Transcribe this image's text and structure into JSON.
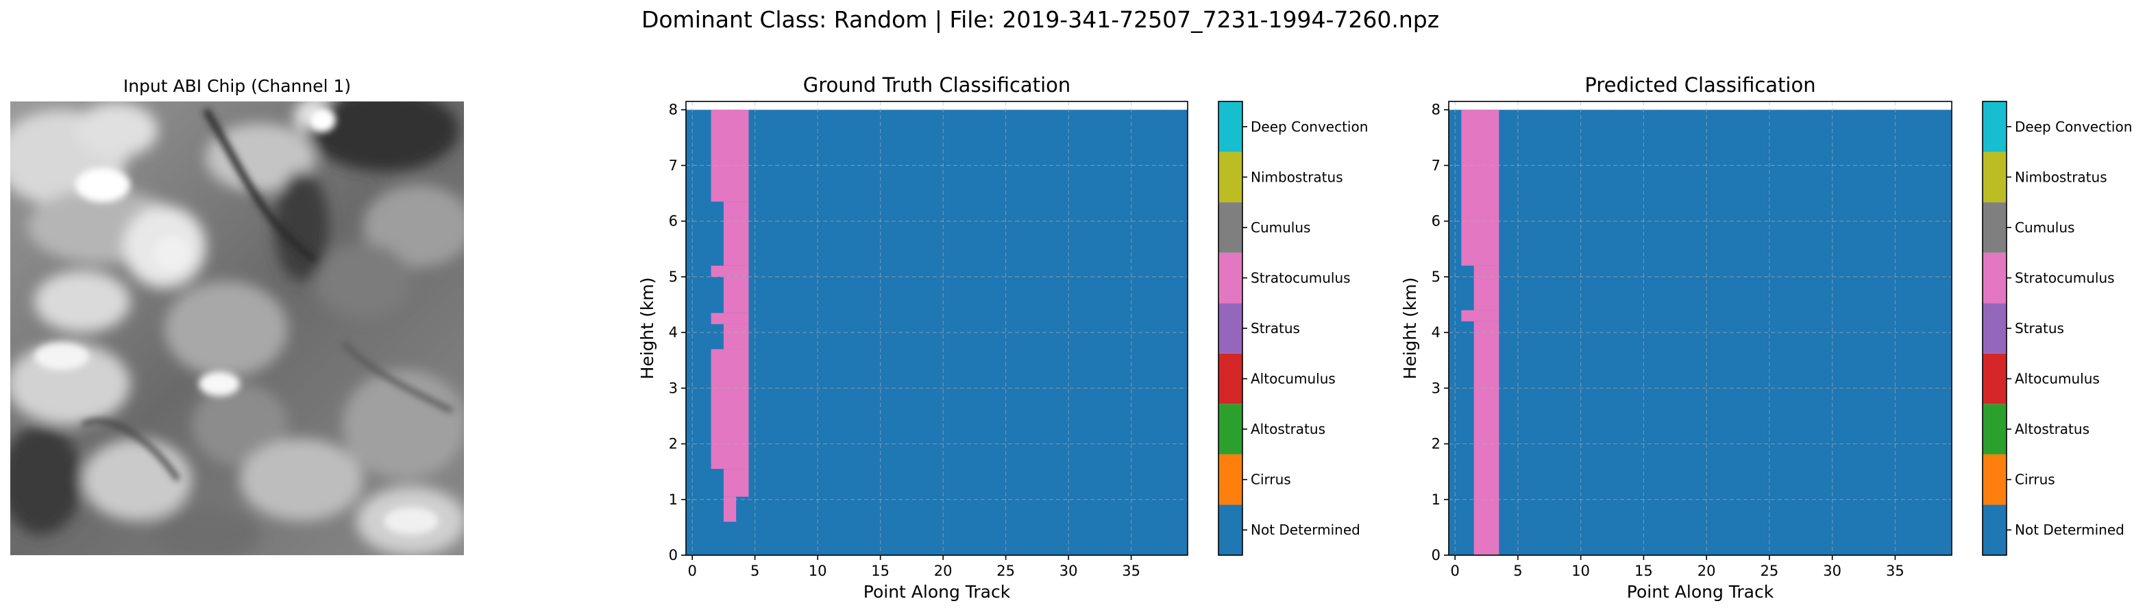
{
  "figure": {
    "suptitle": "Dominant Class: Random | File: 2019-341-72507_7231-1994-7260.npz"
  },
  "input_chip": {
    "title": "Input ABI Chip (Channel 1)"
  },
  "classes": [
    {
      "name": "Not Determined",
      "color": "#1f77b4"
    },
    {
      "name": "Cirrus",
      "color": "#ff7f0e"
    },
    {
      "name": "Altostratus",
      "color": "#2ca02c"
    },
    {
      "name": "Altocumulus",
      "color": "#d62728"
    },
    {
      "name": "Stratus",
      "color": "#9467bd"
    },
    {
      "name": "Stratocumulus",
      "color": "#e377c2"
    },
    {
      "name": "Cumulus",
      "color": "#7f7f7f"
    },
    {
      "name": "Nimbostratus",
      "color": "#bcbd22"
    },
    {
      "name": "Deep Convection",
      "color": "#17becf"
    }
  ],
  "chart_data": [
    {
      "type": "heatmap",
      "title": "Ground Truth Classification",
      "xlabel": "Point Along Track",
      "ylabel": "Height (km)",
      "xlim": [
        -0.5,
        39.5
      ],
      "ylim": [
        0,
        8.15
      ],
      "xticks": [
        0,
        5,
        10,
        15,
        20,
        25,
        30,
        35
      ],
      "yticks": [
        0,
        1,
        2,
        3,
        4,
        5,
        6,
        7,
        8
      ],
      "grid": true,
      "background_class": "Not Determined",
      "regions": [
        {
          "class": "Stratocumulus",
          "x": [
            1.5,
            4.5
          ],
          "y": [
            6.35,
            8.0
          ]
        },
        {
          "class": "Stratocumulus",
          "x": [
            2.5,
            4.5
          ],
          "y": [
            5.2,
            6.35
          ]
        },
        {
          "class": "Stratocumulus",
          "x": [
            1.5,
            4.5
          ],
          "y": [
            5.0,
            5.2
          ]
        },
        {
          "class": "Stratocumulus",
          "x": [
            2.5,
            4.5
          ],
          "y": [
            4.35,
            5.0
          ]
        },
        {
          "class": "Stratocumulus",
          "x": [
            1.5,
            4.5
          ],
          "y": [
            4.15,
            4.35
          ]
        },
        {
          "class": "Stratocumulus",
          "x": [
            2.5,
            4.5
          ],
          "y": [
            3.7,
            4.15
          ]
        },
        {
          "class": "Stratocumulus",
          "x": [
            1.5,
            4.5
          ],
          "y": [
            1.55,
            3.7
          ]
        },
        {
          "class": "Stratocumulus",
          "x": [
            2.5,
            4.5
          ],
          "y": [
            1.05,
            1.55
          ]
        },
        {
          "class": "Stratocumulus",
          "x": [
            2.5,
            3.5
          ],
          "y": [
            0.6,
            1.05
          ]
        }
      ]
    },
    {
      "type": "heatmap",
      "title": "Predicted Classification",
      "xlabel": "Point Along Track",
      "ylabel": "Height (km)",
      "xlim": [
        -0.5,
        39.5
      ],
      "ylim": [
        0,
        8.15
      ],
      "xticks": [
        0,
        5,
        10,
        15,
        20,
        25,
        30,
        35
      ],
      "yticks": [
        0,
        1,
        2,
        3,
        4,
        5,
        6,
        7,
        8
      ],
      "grid": true,
      "background_class": "Not Determined",
      "regions": [
        {
          "class": "Stratocumulus",
          "x": [
            0.5,
            3.5
          ],
          "y": [
            5.2,
            8.0
          ]
        },
        {
          "class": "Stratocumulus",
          "x": [
            1.5,
            3.5
          ],
          "y": [
            4.4,
            5.2
          ]
        },
        {
          "class": "Stratocumulus",
          "x": [
            0.5,
            3.5
          ],
          "y": [
            4.2,
            4.4
          ]
        },
        {
          "class": "Stratocumulus",
          "x": [
            1.5,
            3.5
          ],
          "y": [
            0,
            4.2
          ]
        }
      ]
    }
  ]
}
